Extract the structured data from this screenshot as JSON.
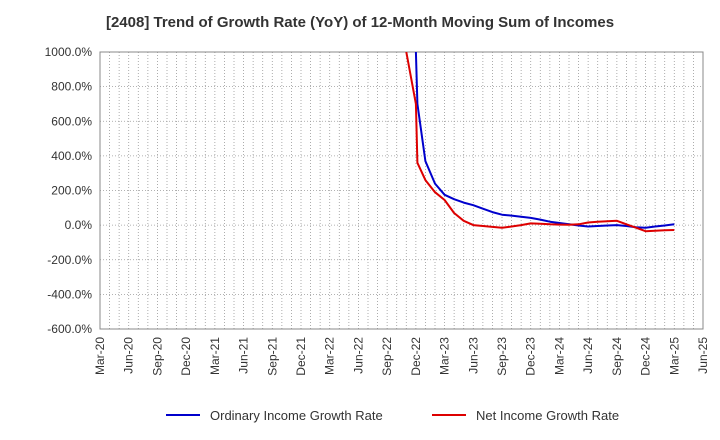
{
  "chart_data": {
    "type": "line",
    "title": "[2408]  Trend of Growth Rate (YoY) of 12-Month Moving Sum of Incomes",
    "xlabel": "",
    "ylabel": "",
    "ylim": [
      -600,
      1000
    ],
    "y_ticks": [
      1000,
      800,
      600,
      400,
      200,
      0,
      -200,
      -400,
      -600
    ],
    "y_tick_labels": [
      "1000.0%",
      "800.0%",
      "600.0%",
      "400.0%",
      "200.0%",
      "0.0%",
      "-200.0%",
      "-400.0%",
      "-600.0%"
    ],
    "x_tick_labels": [
      "Mar-20",
      "Jun-20",
      "Sep-20",
      "Dec-20",
      "Mar-21",
      "Jun-21",
      "Sep-21",
      "Dec-21",
      "Mar-22",
      "Jun-22",
      "Sep-22",
      "Dec-22",
      "Mar-23",
      "Jun-23",
      "Sep-23",
      "Dec-23",
      "Mar-24",
      "Jun-24",
      "Sep-24",
      "Dec-24",
      "Mar-25",
      "Jun-25"
    ],
    "grid": true,
    "legend_position": "bottom",
    "series": [
      {
        "name": "Ordinary Income Growth Rate",
        "color": "#0000cc",
        "points": [
          {
            "x": "Dec-22",
            "y": 1000
          },
          {
            "x": "Dec-22",
            "y": 700
          },
          {
            "x": "Jan-23",
            "y": 370
          },
          {
            "x": "Feb-23",
            "y": 240
          },
          {
            "x": "Mar-23",
            "y": 175
          },
          {
            "x": "Apr-23",
            "y": 150
          },
          {
            "x": "May-23",
            "y": 130
          },
          {
            "x": "Jun-23",
            "y": 115
          },
          {
            "x": "Jul-23",
            "y": 95
          },
          {
            "x": "Aug-23",
            "y": 75
          },
          {
            "x": "Sep-23",
            "y": 60
          },
          {
            "x": "Oct-23",
            "y": 55
          },
          {
            "x": "Nov-23",
            "y": 48
          },
          {
            "x": "Dec-23",
            "y": 42
          },
          {
            "x": "Jan-24",
            "y": 32
          },
          {
            "x": "Feb-24",
            "y": 20
          },
          {
            "x": "Mar-24",
            "y": 12
          },
          {
            "x": "Apr-24",
            "y": 5
          },
          {
            "x": "May-24",
            "y": -2
          },
          {
            "x": "Jun-24",
            "y": -8
          },
          {
            "x": "Jul-24",
            "y": -5
          },
          {
            "x": "Aug-24",
            "y": -2
          },
          {
            "x": "Sep-24",
            "y": 0
          },
          {
            "x": "Oct-24",
            "y": -5
          },
          {
            "x": "Nov-24",
            "y": -12
          },
          {
            "x": "Dec-24",
            "y": -15
          },
          {
            "x": "Jan-25",
            "y": -8
          },
          {
            "x": "Feb-25",
            "y": -2
          },
          {
            "x": "Mar-25",
            "y": 5
          }
        ]
      },
      {
        "name": "Net Income Growth Rate",
        "color": "#dd0000",
        "points": [
          {
            "x": "Nov-22",
            "y": 1000
          },
          {
            "x": "Dec-22",
            "y": 700
          },
          {
            "x": "Dec-22",
            "y": 360
          },
          {
            "x": "Jan-23",
            "y": 260
          },
          {
            "x": "Feb-23",
            "y": 190
          },
          {
            "x": "Mar-23",
            "y": 145
          },
          {
            "x": "Apr-23",
            "y": 70
          },
          {
            "x": "May-23",
            "y": 25
          },
          {
            "x": "Jun-23",
            "y": 0
          },
          {
            "x": "Jul-23",
            "y": -5
          },
          {
            "x": "Aug-23",
            "y": -10
          },
          {
            "x": "Sep-23",
            "y": -15
          },
          {
            "x": "Oct-23",
            "y": -8
          },
          {
            "x": "Nov-23",
            "y": 0
          },
          {
            "x": "Dec-23",
            "y": 10
          },
          {
            "x": "Jan-24",
            "y": 8
          },
          {
            "x": "Feb-24",
            "y": 5
          },
          {
            "x": "Mar-24",
            "y": 3
          },
          {
            "x": "Apr-24",
            "y": 2
          },
          {
            "x": "May-24",
            "y": 5
          },
          {
            "x": "Jun-24",
            "y": 15
          },
          {
            "x": "Jul-24",
            "y": 20
          },
          {
            "x": "Aug-24",
            "y": 22
          },
          {
            "x": "Sep-24",
            "y": 25
          },
          {
            "x": "Oct-24",
            "y": 5
          },
          {
            "x": "Nov-24",
            "y": -15
          },
          {
            "x": "Dec-24",
            "y": -35
          },
          {
            "x": "Jan-25",
            "y": -32
          },
          {
            "x": "Feb-25",
            "y": -30
          },
          {
            "x": "Mar-25",
            "y": -28
          }
        ]
      }
    ]
  },
  "legend": {
    "items": [
      {
        "label": "Ordinary Income Growth Rate",
        "color": "#0000cc"
      },
      {
        "label": "Net Income Growth Rate",
        "color": "#dd0000"
      }
    ]
  }
}
